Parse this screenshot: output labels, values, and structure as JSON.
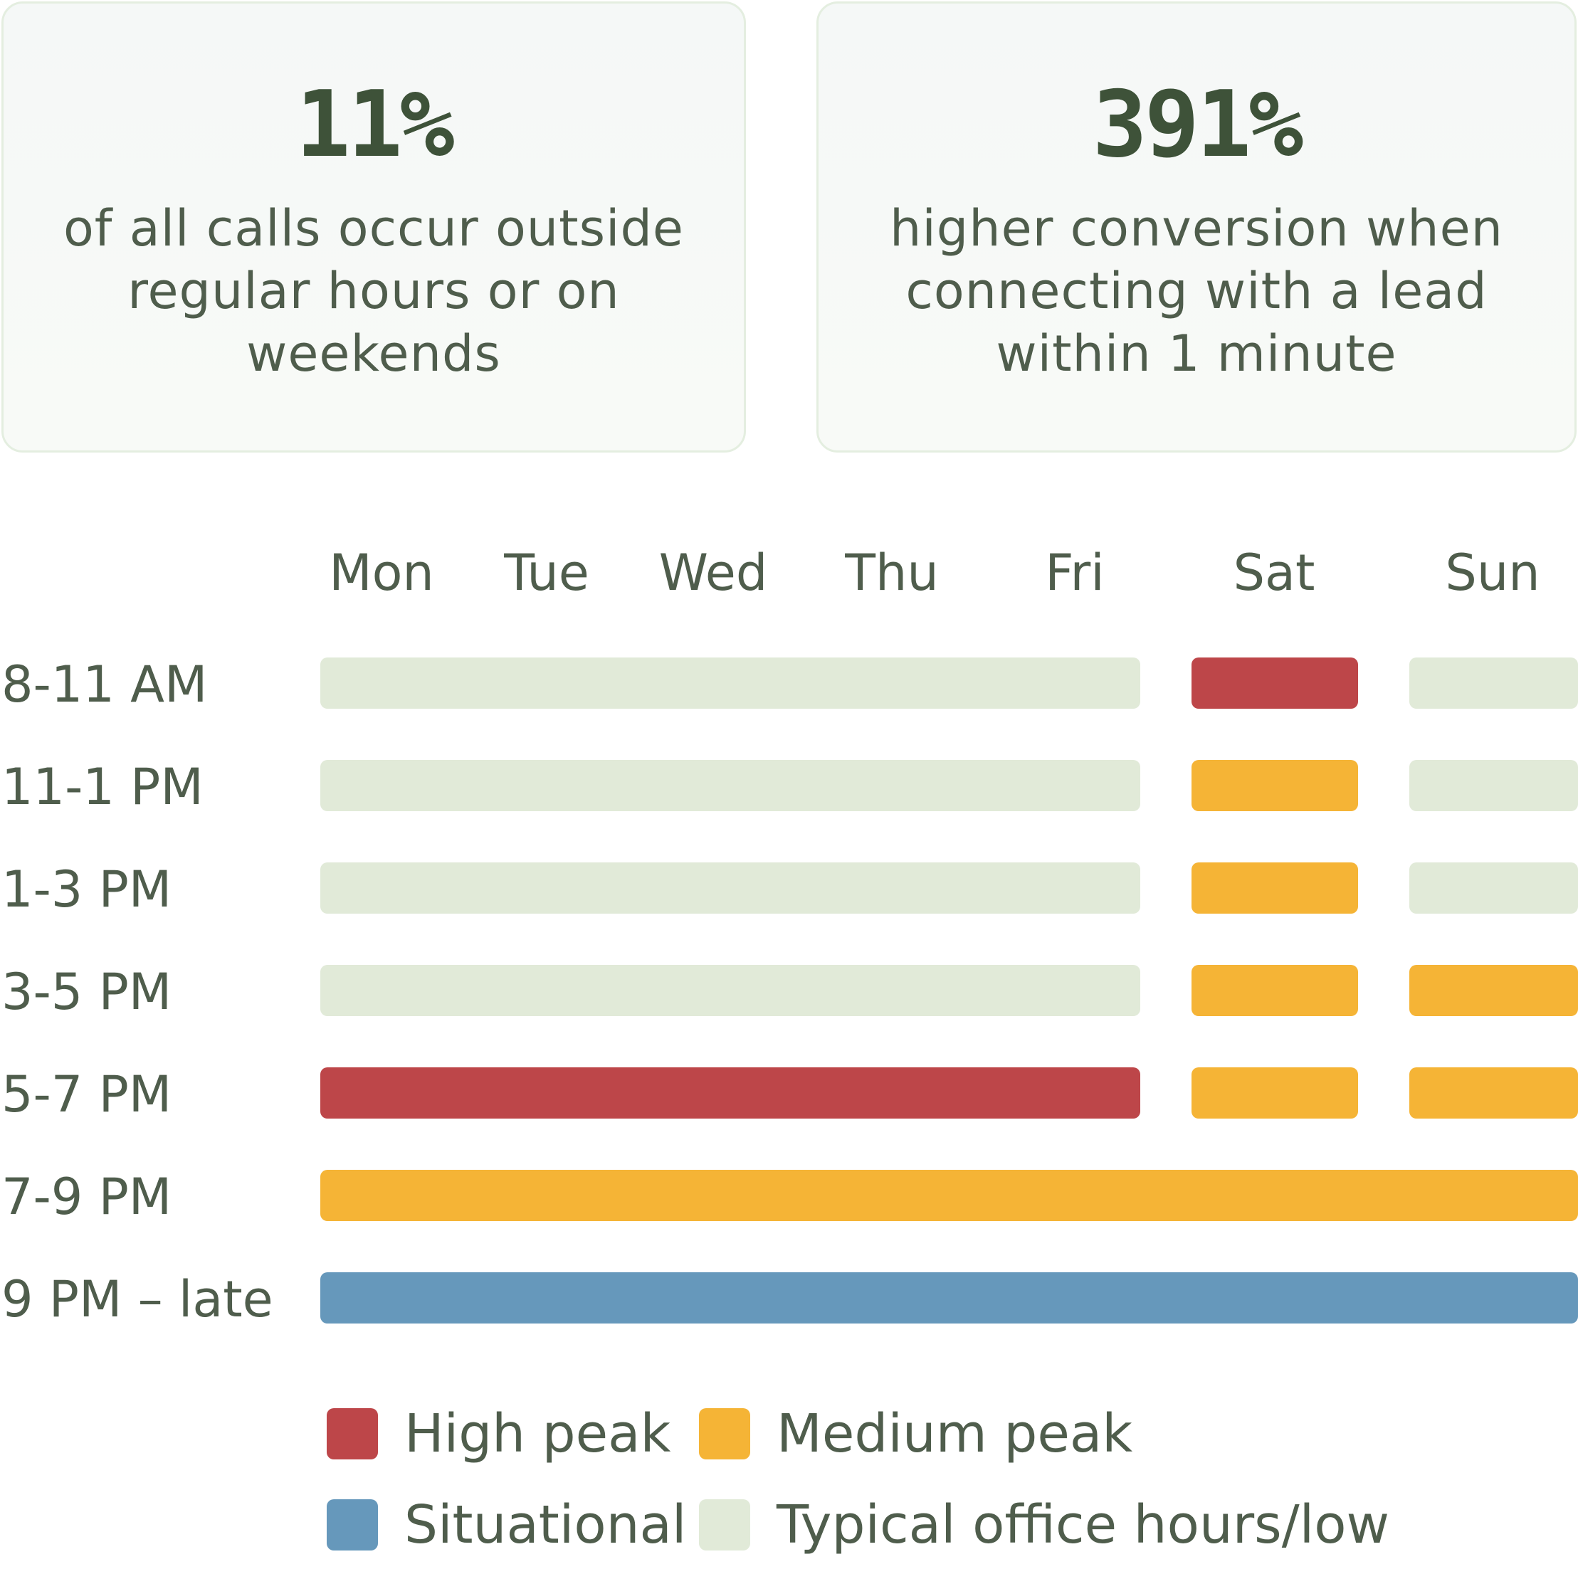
{
  "stats": [
    {
      "value": "11%",
      "description": "of all calls occur outside regular hours or on weekends"
    },
    {
      "value": "391%",
      "description": "higher conversion when connecting with a lead within 1 minute"
    }
  ],
  "colors": {
    "high": "#bd4649",
    "medium": "#f5b436",
    "situational": "#6698bb",
    "low": "#e1ead8"
  },
  "chart_data": {
    "type": "heatmap",
    "days": [
      "Mon",
      "Tue",
      "Wed",
      "Thu",
      "Fri",
      "Sat",
      "Sun"
    ],
    "time_slots": [
      "8-11 AM",
      "11-1 PM",
      "1-3 PM",
      "3-5 PM",
      "5-7 PM",
      "7-9 PM",
      "9 PM – late"
    ],
    "rows": [
      {
        "weekdays": "low",
        "sat": "high",
        "sun": "low"
      },
      {
        "weekdays": "low",
        "sat": "medium",
        "sun": "low"
      },
      {
        "weekdays": "low",
        "sat": "medium",
        "sun": "low"
      },
      {
        "weekdays": "low",
        "sat": "medium",
        "sun": "medium"
      },
      {
        "weekdays": "high",
        "sat": "medium",
        "sun": "medium"
      },
      {
        "all": "medium"
      },
      {
        "all": "situational"
      }
    ],
    "legend": [
      {
        "key": "high",
        "label": "High peak"
      },
      {
        "key": "medium",
        "label": "Medium peak"
      },
      {
        "key": "situational",
        "label": "Situational"
      },
      {
        "key": "low",
        "label": "Typical office hours/low"
      }
    ]
  }
}
